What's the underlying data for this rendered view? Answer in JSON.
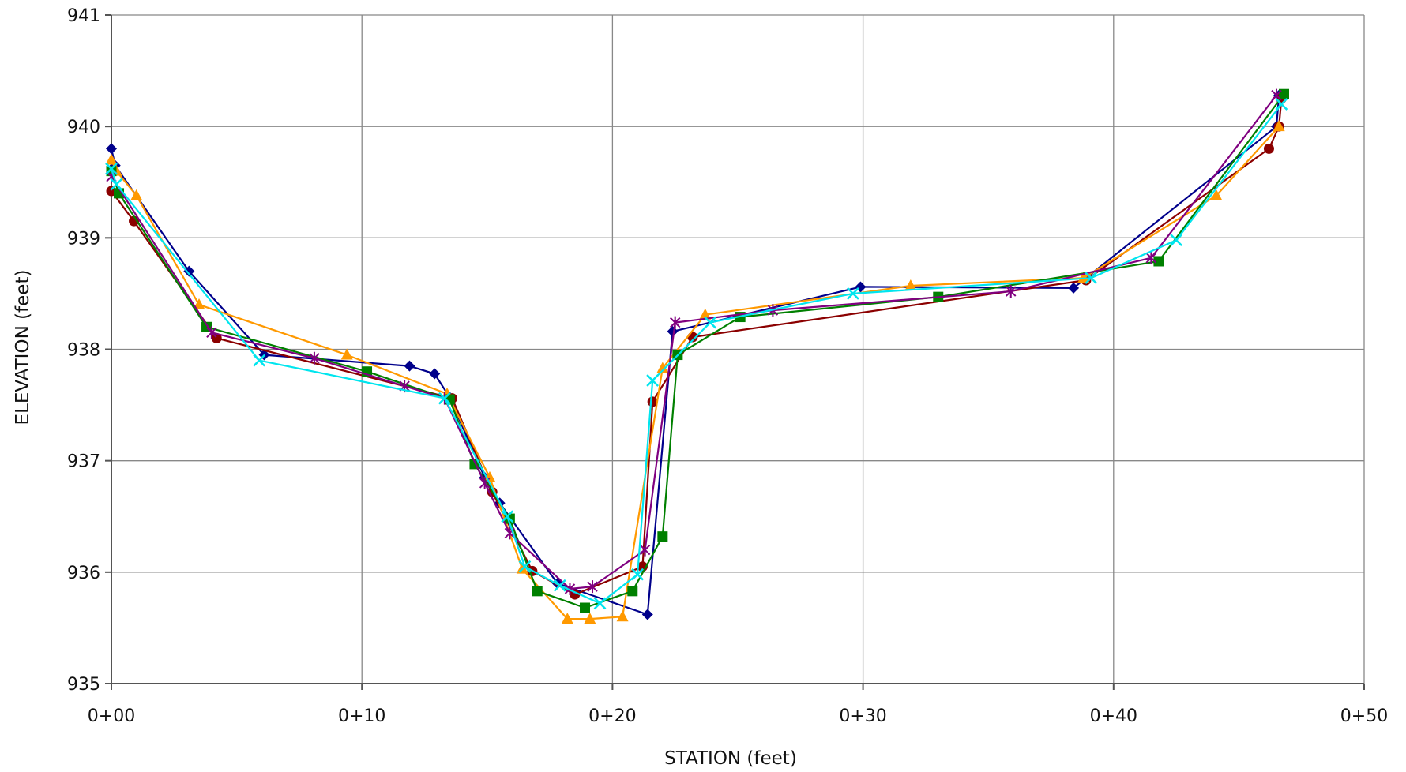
{
  "chart_data": {
    "type": "line",
    "title": "",
    "xlabel": "STATION (feet)",
    "ylabel": "ELEVATION (feet)",
    "xlim": [
      0,
      50
    ],
    "ylim": [
      935,
      941
    ],
    "x_ticks": [
      0,
      10,
      20,
      30,
      40,
      50
    ],
    "x_tick_labels": [
      "0+00",
      "0+10",
      "0+20",
      "0+30",
      "0+40",
      "0+50"
    ],
    "y_ticks": [
      935,
      936,
      937,
      938,
      939,
      940,
      941
    ],
    "y_tick_labels": [
      "935",
      "936",
      "937",
      "938",
      "939",
      "940",
      "941"
    ],
    "grid": true,
    "legend": "none",
    "series": [
      {
        "color": "#00008B",
        "marker": "diamond",
        "points": [
          [
            0.0,
            939.8
          ],
          [
            0.15,
            939.65
          ],
          [
            3.1,
            938.7
          ],
          [
            6.1,
            937.95
          ],
          [
            11.9,
            937.85
          ],
          [
            12.9,
            937.78
          ],
          [
            13.5,
            937.57
          ],
          [
            14.9,
            936.85
          ],
          [
            15.5,
            936.62
          ],
          [
            17.8,
            935.9
          ],
          [
            21.4,
            935.62
          ],
          [
            22.4,
            938.16
          ],
          [
            29.9,
            938.56
          ],
          [
            38.4,
            938.55
          ],
          [
            46.5,
            940.0
          ],
          [
            46.6,
            940.28
          ]
        ]
      },
      {
        "color": "#8B0000",
        "marker": "circle",
        "points": [
          [
            0.0,
            939.42
          ],
          [
            0.9,
            939.15
          ],
          [
            4.2,
            938.1
          ],
          [
            13.6,
            937.56
          ],
          [
            15.2,
            936.72
          ],
          [
            16.8,
            936.01
          ],
          [
            18.5,
            935.8
          ],
          [
            21.2,
            936.05
          ],
          [
            21.6,
            937.53
          ],
          [
            23.2,
            938.11
          ],
          [
            38.9,
            938.62
          ],
          [
            46.2,
            939.8
          ],
          [
            46.6,
            940.0
          ],
          [
            46.7,
            940.25
          ]
        ]
      },
      {
        "color": "#FF9900",
        "marker": "triangle",
        "points": [
          [
            0.0,
            939.7
          ],
          [
            0.2,
            939.6
          ],
          [
            1.0,
            939.38
          ],
          [
            3.5,
            938.4
          ],
          [
            9.4,
            937.95
          ],
          [
            13.4,
            937.6
          ],
          [
            15.1,
            936.85
          ],
          [
            16.4,
            936.03
          ],
          [
            18.2,
            935.58
          ],
          [
            19.1,
            935.58
          ],
          [
            20.4,
            935.6
          ],
          [
            22.0,
            937.83
          ],
          [
            23.7,
            938.31
          ],
          [
            31.9,
            938.57
          ],
          [
            38.8,
            938.64
          ],
          [
            44.1,
            939.38
          ],
          [
            46.6,
            940.0
          ]
        ]
      },
      {
        "color": "#008000",
        "marker": "square",
        "points": [
          [
            0.0,
            939.6
          ],
          [
            0.3,
            939.4
          ],
          [
            3.8,
            938.2
          ],
          [
            10.2,
            937.8
          ],
          [
            13.5,
            937.55
          ],
          [
            14.5,
            936.97
          ],
          [
            15.9,
            936.48
          ],
          [
            17.0,
            935.83
          ],
          [
            18.9,
            935.68
          ],
          [
            20.8,
            935.83
          ],
          [
            22.0,
            936.32
          ],
          [
            22.6,
            937.95
          ],
          [
            25.1,
            938.29
          ],
          [
            33.0,
            938.47
          ],
          [
            41.8,
            938.79
          ],
          [
            46.8,
            940.29
          ]
        ]
      },
      {
        "color": "#800080",
        "marker": "star",
        "points": [
          [
            0.0,
            939.55
          ],
          [
            4.0,
            938.15
          ],
          [
            8.1,
            937.92
          ],
          [
            11.7,
            937.67
          ],
          [
            13.3,
            937.56
          ],
          [
            14.9,
            936.8
          ],
          [
            15.9,
            936.35
          ],
          [
            18.3,
            935.85
          ],
          [
            19.2,
            935.87
          ],
          [
            21.3,
            936.2
          ],
          [
            22.5,
            938.24
          ],
          [
            26.4,
            938.35
          ],
          [
            35.9,
            938.52
          ],
          [
            41.5,
            938.82
          ],
          [
            46.5,
            940.28
          ]
        ]
      },
      {
        "color": "#00E5EE",
        "marker": "x",
        "points": [
          [
            0.0,
            939.62
          ],
          [
            0.2,
            939.48
          ],
          [
            5.9,
            937.9
          ],
          [
            13.3,
            937.56
          ],
          [
            15.8,
            936.5
          ],
          [
            16.5,
            936.05
          ],
          [
            17.9,
            935.88
          ],
          [
            19.5,
            935.72
          ],
          [
            21.0,
            935.98
          ],
          [
            21.6,
            937.72
          ],
          [
            23.9,
            938.24
          ],
          [
            29.6,
            938.5
          ],
          [
            39.1,
            938.64
          ],
          [
            42.5,
            938.98
          ],
          [
            46.7,
            940.2
          ]
        ]
      }
    ]
  }
}
